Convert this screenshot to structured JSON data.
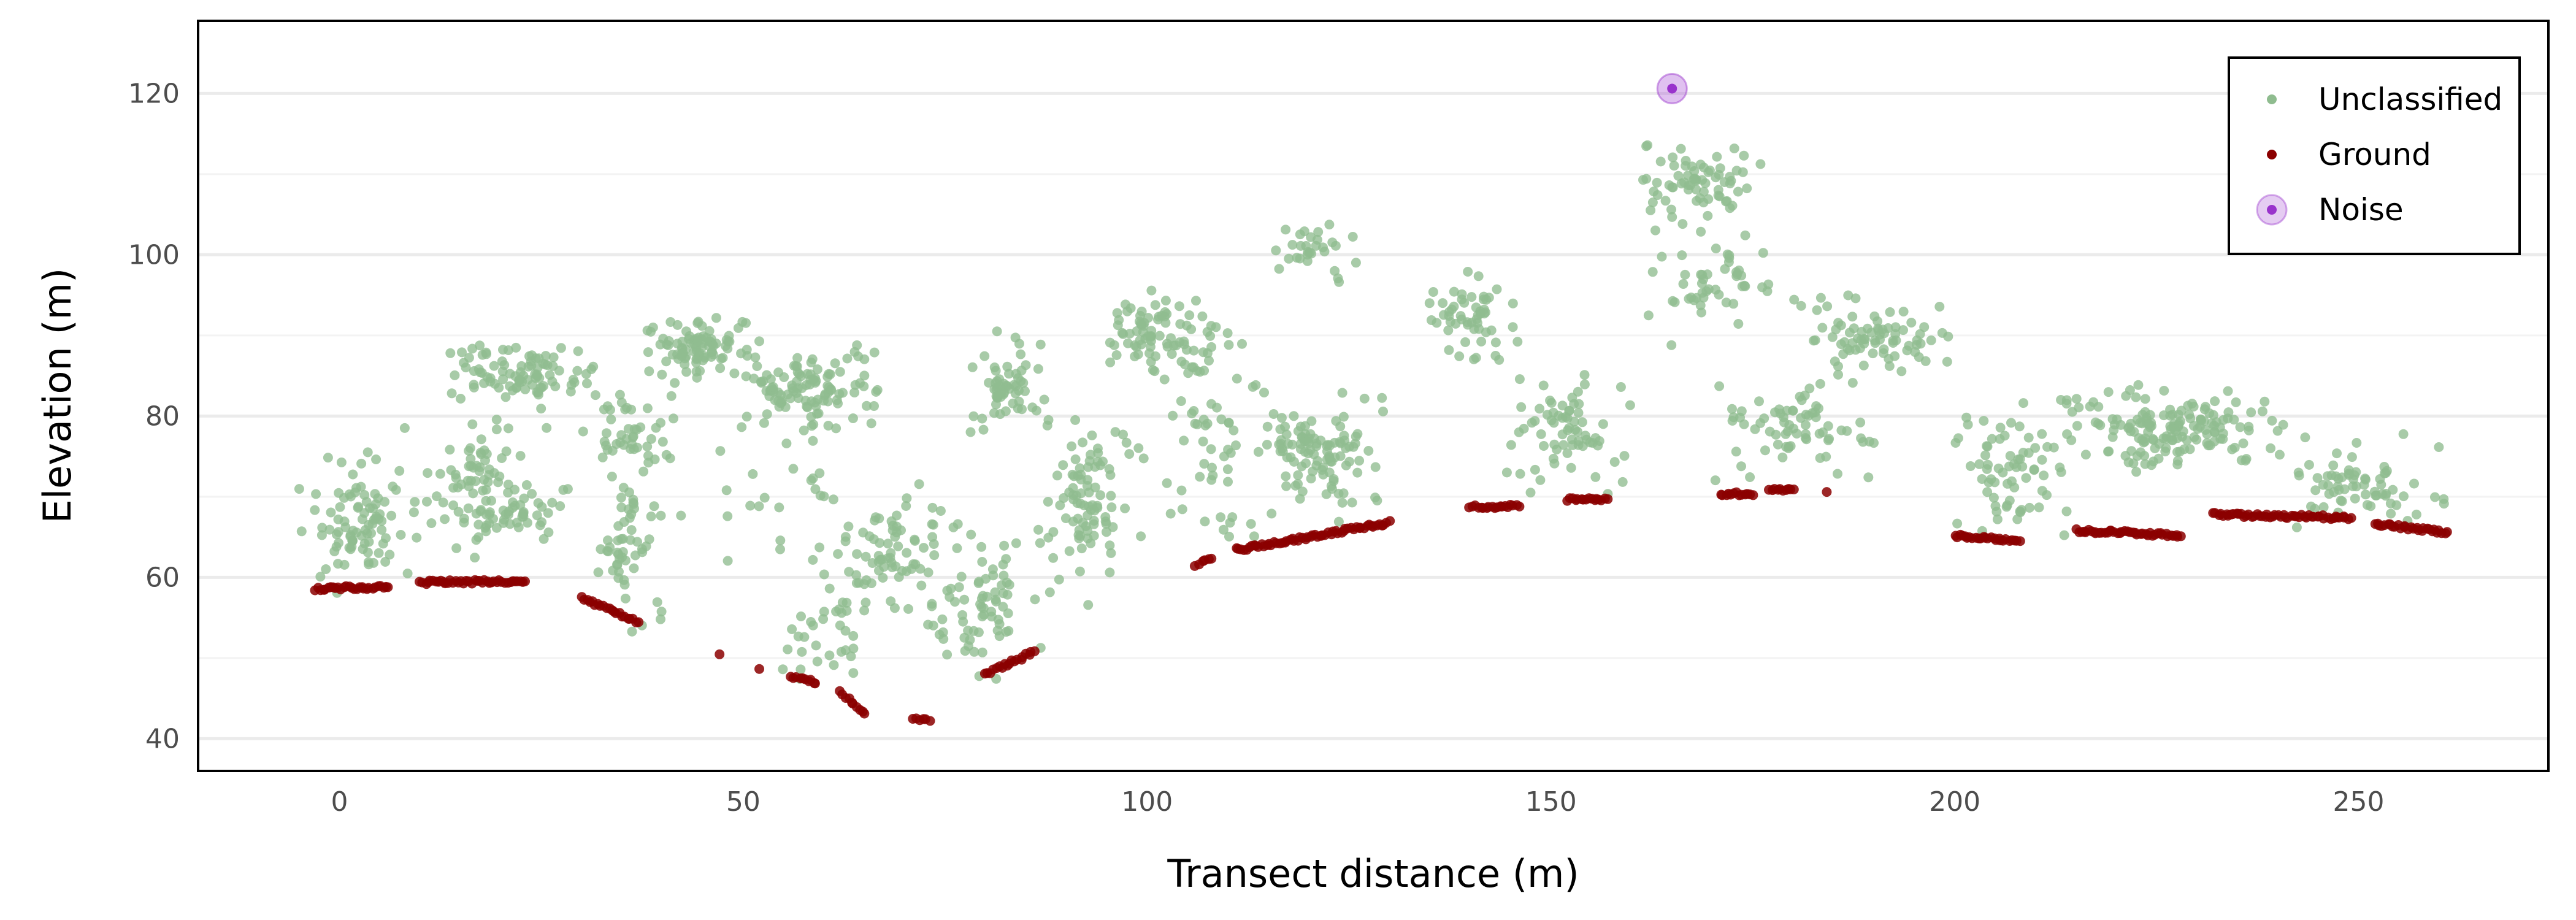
{
  "chart_data": {
    "type": "scatter",
    "title": "",
    "xlabel": "Transect distance (m)",
    "ylabel": "Elevation (m)",
    "xlim": [
      -17.5,
      273.5
    ],
    "ylim": [
      36,
      129
    ],
    "x_ticks": [
      0,
      50,
      100,
      150,
      200,
      250
    ],
    "y_ticks": [
      40,
      60,
      80,
      100,
      120
    ],
    "grid": "horizontal",
    "legend_position": "top-right",
    "series": [
      {
        "name": "Unclassified",
        "color": "#8fbc8f",
        "clusters": [
          {
            "x": [
              -5,
              10
            ],
            "y": [
              58,
              76
            ],
            "n": 90
          },
          {
            "x": [
              8,
              26
            ],
            "y": [
              61,
              82
            ],
            "n": 80
          },
          {
            "x": [
              14,
              30
            ],
            "y": [
              64,
              72
            ],
            "n": 35
          },
          {
            "x": [
              12,
              35
            ],
            "y": [
              81,
              89
            ],
            "n": 90
          },
          {
            "x": [
              30,
              40
            ],
            "y": [
              53,
              77
            ],
            "n": 55
          },
          {
            "x": [
              30,
              42
            ],
            "y": [
              70,
              86
            ],
            "n": 45
          },
          {
            "x": [
              38,
              52
            ],
            "y": [
              84,
              93
            ],
            "n": 90
          },
          {
            "x": [
              48,
              68
            ],
            "y": [
              78,
              89
            ],
            "n": 110
          },
          {
            "x": [
              42,
              66
            ],
            "y": [
              60,
              80
            ],
            "n": 22
          },
          {
            "x": [
              58,
              78
            ],
            "y": [
              54,
              72
            ],
            "n": 90
          },
          {
            "x": [
              54,
              68
            ],
            "y": [
              45,
              58
            ],
            "n": 24
          },
          {
            "x": [
              72,
              88
            ],
            "y": [
              47,
              66
            ],
            "n": 70
          },
          {
            "x": [
              78,
              88
            ],
            "y": [
              77,
              91
            ],
            "n": 60
          },
          {
            "x": [
              86,
              100
            ],
            "y": [
              56,
              82
            ],
            "n": 90
          },
          {
            "x": [
              94,
              108
            ],
            "y": [
              84,
              96
            ],
            "n": 80
          },
          {
            "x": [
              102,
              114
            ],
            "y": [
              62,
              92
            ],
            "n": 55
          },
          {
            "x": [
              112,
              130
            ],
            "y": [
              66,
              84
            ],
            "n": 110
          },
          {
            "x": [
              115,
              127
            ],
            "y": [
              96,
              104
            ],
            "n": 30
          },
          {
            "x": [
              134,
              146
            ],
            "y": [
              86,
              98
            ],
            "n": 55
          },
          {
            "x": [
              144,
              160
            ],
            "y": [
              70,
              86
            ],
            "n": 70
          },
          {
            "x": [
              161,
              176
            ],
            "y": [
              103,
              114
            ],
            "n": 70
          },
          {
            "x": [
              162,
              178
            ],
            "y": [
              88,
              106
            ],
            "n": 50
          },
          {
            "x": [
              170,
              190
            ],
            "y": [
              72,
              86
            ],
            "n": 70
          },
          {
            "x": [
              180,
              200
            ],
            "y": [
              84,
              95
            ],
            "n": 80
          },
          {
            "x": [
              200,
              214
            ],
            "y": [
              64,
              83
            ],
            "n": 70
          },
          {
            "x": [
              212,
              242
            ],
            "y": [
              73,
              84
            ],
            "n": 160
          },
          {
            "x": [
              240,
              261
            ],
            "y": [
              66,
              78
            ],
            "n": 70
          }
        ]
      },
      {
        "name": "Ground",
        "color": "#8b0000",
        "segments": [
          [
            [
              -3,
              58.6
            ],
            [
              6,
              58.8
            ]
          ],
          [
            [
              10,
              59.4
            ],
            [
              23,
              59.5
            ]
          ],
          [
            [
              30,
              57.5
            ],
            [
              37,
              54.4
            ]
          ],
          [
            [
              47,
              50.5
            ],
            [
              47,
              50.5
            ]
          ],
          [
            [
              52,
              48.5
            ],
            [
              52,
              48.5
            ]
          ],
          [
            [
              56,
              47.6
            ],
            [
              59,
              47.0
            ]
          ],
          [
            [
              62,
              45.8
            ],
            [
              65,
              43.0
            ]
          ],
          [
            [
              71,
              42.6
            ],
            [
              73,
              42.3
            ]
          ],
          [
            [
              80,
              48.0
            ],
            [
              86,
              50.8
            ]
          ],
          [
            [
              106,
              61.5
            ],
            [
              108,
              62.3
            ]
          ],
          [
            [
              111,
              63.4
            ],
            [
              130,
              66.8
            ]
          ],
          [
            [
              140,
              68.8
            ],
            [
              146,
              68.8
            ]
          ],
          [
            [
              152,
              69.6
            ],
            [
              157,
              69.8
            ]
          ],
          [
            [
              171,
              70.3
            ],
            [
              175,
              70.4
            ]
          ],
          [
            [
              177,
              70.8
            ],
            [
              180,
              70.8
            ]
          ],
          [
            [
              184,
              70.4
            ],
            [
              184,
              70.4
            ]
          ],
          [
            [
              200,
              65.2
            ],
            [
              208,
              64.4
            ]
          ],
          [
            [
              215,
              65.8
            ],
            [
              228,
              65.2
            ]
          ],
          [
            [
              232,
              67.8
            ],
            [
              249,
              67.4
            ]
          ],
          [
            [
              252,
              66.6
            ],
            [
              261,
              65.6
            ]
          ]
        ]
      },
      {
        "name": "Noise",
        "color": "#9932cc",
        "points": [
          [
            165,
            120.6
          ]
        ]
      }
    ]
  }
}
